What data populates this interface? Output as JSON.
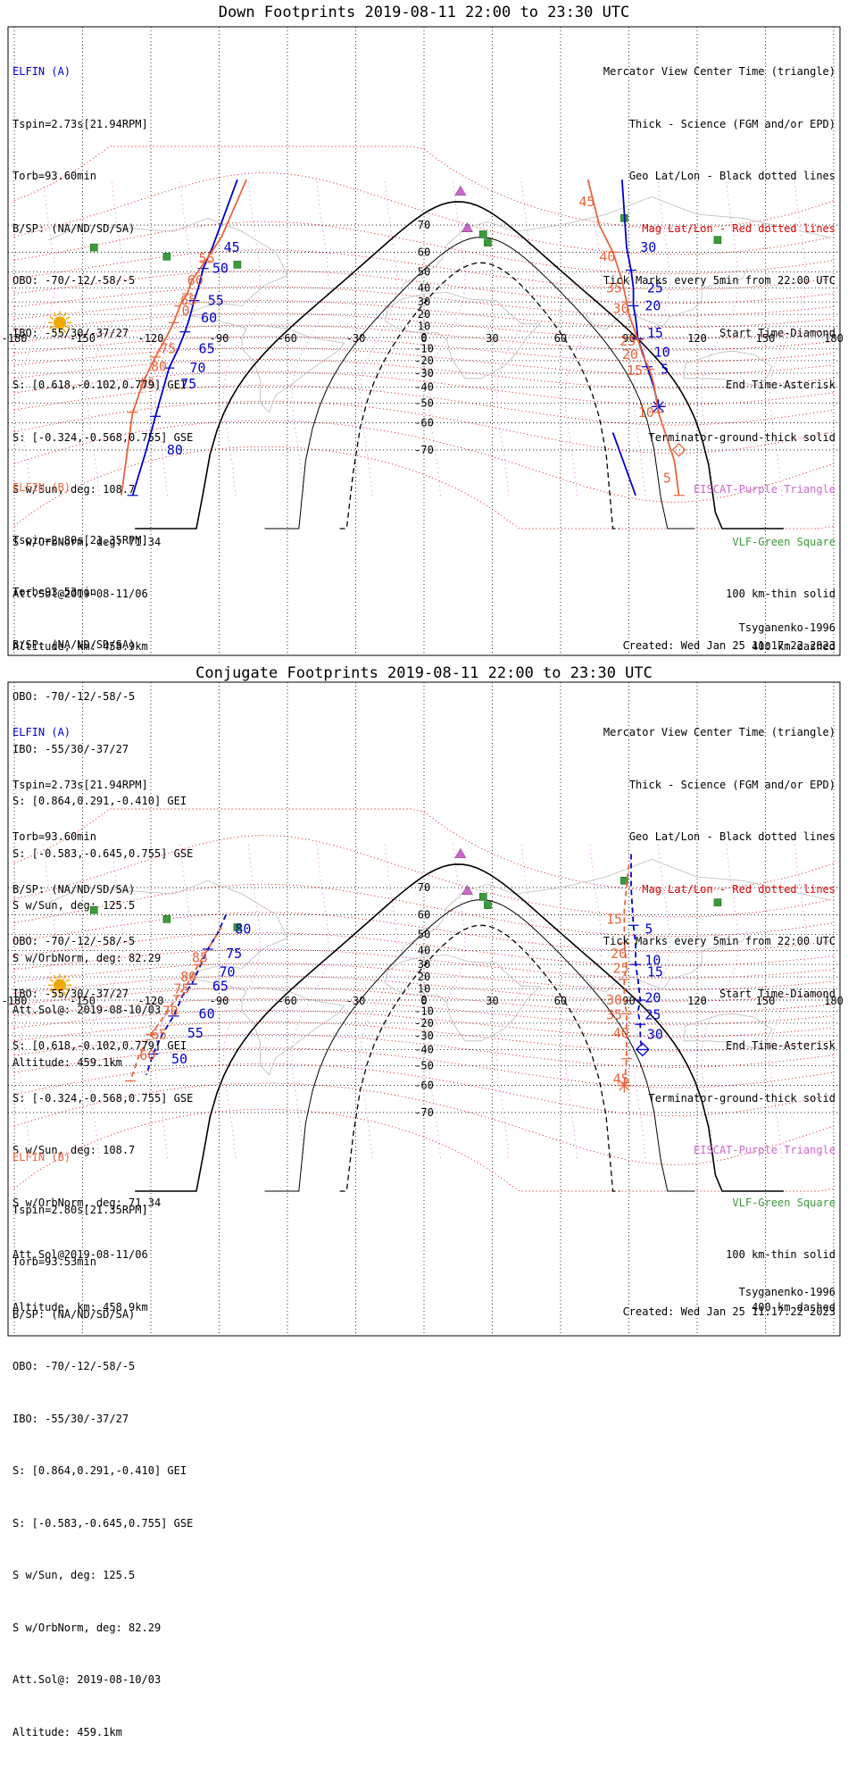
{
  "colors": {
    "elfin_a": "#0000cc",
    "elfin_b": "#e8643c",
    "mag_grid": "#dd0000",
    "geo_grid": "#000000",
    "eiscat": "#cc66cc",
    "vlf": "#3a9a3a",
    "coast": "#bbbbbb"
  },
  "icons": {
    "sun": "sun-icon",
    "eiscat": "triangle-marker",
    "vlf": "square-marker",
    "start": "diamond-marker",
    "end": "asterisk-marker"
  },
  "legend": [
    {
      "text": "Mercator View Center Time (triangle)",
      "color": "black"
    },
    {
      "text": "Thick - Science (FGM and/or EPD)",
      "color": "black"
    },
    {
      "text": "Geo Lat/Lon - Black dotted lines",
      "color": "black"
    },
    {
      "text": "Mag Lat/Lon - Red dotted lines",
      "color": "red"
    },
    {
      "text": "Tick Marks every 5min from 22:00 UTC",
      "color": "black"
    },
    {
      "text": "Start Time-Diamond",
      "color": "black"
    },
    {
      "text": "End Time-Asterisk",
      "color": "black"
    },
    {
      "text": "Terminator-ground-thick solid",
      "color": "black"
    },
    {
      "text": "EISCAT-Purple Triangle",
      "color": "purple"
    },
    {
      "text": "VLF-Green Square",
      "color": "green"
    },
    {
      "text": "100 km-thin solid",
      "color": "black"
    },
    {
      "text": "400 km-dashed",
      "color": "black"
    }
  ],
  "elfin_a_info": [
    "ELFIN (A)",
    "Tspin=2.73s[21.94RPM]",
    "Torb=93.60min",
    "B/SP: (NA/ND/SD/SA)",
    "OBO: -70/-12/-58/-5",
    "IBO: -55/30/-37/27",
    "S: [0.618,-0.102,0.779] GEI",
    "S: [-0.324,-0.568,0.755] GSE",
    "S w/Sun, deg: 108.7",
    "S w/OrbNorm, deg: 71.34",
    "Att.Sol@2019-08-11/06",
    "Altitude, km: 458.9km"
  ],
  "elfin_b_info": [
    "ELFIN (B)",
    "Tspin=2.80s[21.35RPM]",
    "Torb=93.53min",
    "B/SP: (NA/ND/SD/SA)",
    "OBO: -70/-12/-58/-5",
    "IBO: -55/30/-37/27",
    "S: [0.864,0.291,-0.410] GEI",
    "S: [-0.583,-0.645,0.755] GSE",
    "S w/Sun, deg: 125.5",
    "S w/OrbNorm, deg: 82.29",
    "Att.Sol@: 2019-08-10/03",
    "Altitude: 459.1km"
  ],
  "panels": [
    {
      "title": "Down Footprints 2019-08-11 22:00 to 23:30 UTC",
      "model": "Tsyganenko-1996",
      "created": "Created: Wed Jan 25 11:17:22 2023"
    },
    {
      "title": "Conjugate Footprints 2019-08-11 22:00 to 23:30 UTC",
      "model": "Tsyganenko-1996",
      "created": "Created: Wed Jan 25 11:17:22 2023"
    }
  ],
  "chart_data": [
    {
      "type": "map",
      "title": "Down Footprints 2019-08-11 22:00 to 23:30 UTC",
      "projection": "mercator",
      "xlim": [
        -180,
        180
      ],
      "ylim": [
        -80,
        80
      ],
      "lon_ticks": [
        -180,
        -150,
        -120,
        -90,
        -60,
        -30,
        0,
        30,
        60,
        90,
        120,
        150,
        180
      ],
      "lat_ticks": [
        -70,
        -60,
        -50,
        -40,
        -30,
        -20,
        -10,
        0,
        10,
        20,
        30,
        40,
        50,
        60,
        70
      ],
      "eiscat": [
        {
          "lon": 16,
          "lat": 78
        },
        {
          "lon": 19,
          "lat": 69
        }
      ],
      "vlf": [
        {
          "lon": -145,
          "lat": 62
        },
        {
          "lon": -113,
          "lat": 58
        },
        {
          "lon": -82,
          "lat": 54
        },
        {
          "lon": 26,
          "lat": 67
        },
        {
          "lon": 28,
          "lat": 64
        },
        {
          "lon": 88,
          "lat": 72
        },
        {
          "lon": 129,
          "lat": 65
        }
      ],
      "sun": {
        "lon": -160,
        "lat": 13
      },
      "series": [
        {
          "name": "ELFIN (A)",
          "color": "#0000cc",
          "marks": "end",
          "tracks": [
            {
              "points": [
                [
                  -82,
                  80
                ],
                [
                  -93,
                  62
                ],
                [
                  -97,
                  52
                ],
                [
                  -99,
                  41
                ],
                [
                  -101,
                  31
                ],
                [
                  -103,
                  17
                ],
                [
                  -105,
                  5
                ],
                [
                  -108,
                  -10
                ],
                [
                  -112,
                  -26
                ],
                [
                  -114,
                  -38
                ],
                [
                  -118,
                  -57
                ],
                [
                  -122,
                  -70
                ],
                [
                  -128,
                  -80
                ]
              ]
            },
            {
              "points": [
                [
                  87,
                  80
                ],
                [
                  89,
                  62
                ],
                [
                  91,
                  51
                ],
                [
                  92,
                  40
                ],
                [
                  92,
                  27
                ],
                [
                  93,
                  17
                ],
                [
                  94,
                  -1
                ],
                [
                  96,
                  -13
                ],
                [
                  98,
                  -25
                ],
                [
                  101,
                  -40
                ],
                [
                  103,
                  -52
                ]
              ]
            },
            {
              "points": [
                [
                  83,
                  -64
                ],
                [
                  93,
                  -80
                ]
              ]
            }
          ],
          "labels": [
            {
              "text": "45",
              "lon": -88,
              "lat": 62
            },
            {
              "text": "50",
              "lon": -93,
              "lat": 52
            },
            {
              "text": "55",
              "lon": -95,
              "lat": 31
            },
            {
              "text": "60",
              "lon": -98,
              "lat": 17
            },
            {
              "text": "65",
              "lon": -99,
              "lat": -10
            },
            {
              "text": "70",
              "lon": -103,
              "lat": -26
            },
            {
              "text": "75",
              "lon": -107,
              "lat": -38
            },
            {
              "text": "80",
              "lon": -113,
              "lat": -70
            },
            {
              "text": "30",
              "lon": 95,
              "lat": 62
            },
            {
              "text": "25",
              "lon": 98,
              "lat": 40
            },
            {
              "text": "20",
              "lon": 97,
              "lat": 27
            },
            {
              "text": "15",
              "lon": 98,
              "lat": 4
            },
            {
              "text": "10",
              "lon": 101,
              "lat": -13
            },
            {
              "text": "5",
              "lon": 104,
              "lat": -27
            }
          ]
        },
        {
          "name": "ELFIN (B)",
          "color": "#e8643c",
          "marks": "start",
          "tracks": [
            {
              "points": [
                [
                  -78,
                  80
                ],
                [
                  -89,
                  66
                ],
                [
                  -96,
                  56
                ],
                [
                  -102,
                  45
                ],
                [
                  -104,
                  36
                ],
                [
                  -107,
                  28
                ],
                [
                  -110,
                  13
                ],
                [
                  -113,
                  1
                ],
                [
                  -118,
                  -17
                ],
                [
                  -123,
                  -35
                ],
                [
                  -128,
                  -55
                ],
                [
                  -133,
                  -80
                ]
              ]
            },
            {
              "points": [
                [
                  72,
                  80
                ],
                [
                  77,
                  70
                ],
                [
                  83,
                  60
                ],
                [
                  87,
                  45
                ],
                [
                  89,
                  30
                ],
                [
                  90,
                  20
                ],
                [
                  94,
                  -2
                ],
                [
                  96,
                  -15
                ],
                [
                  99,
                  -27
                ],
                [
                  101,
                  -38
                ],
                [
                  103,
                  -55
                ],
                [
                  110,
                  -73
                ],
                [
                  112,
                  -80
                ]
              ]
            }
          ],
          "labels": [
            {
              "text": "55",
              "lon": -99,
              "lat": 57
            },
            {
              "text": "60",
              "lon": -104,
              "lat": 45
            },
            {
              "text": "65",
              "lon": -107,
              "lat": 31
            },
            {
              "text": "70",
              "lon": -110,
              "lat": 23
            },
            {
              "text": "75",
              "lon": -116,
              "lat": -10
            },
            {
              "text": "80",
              "lon": -120,
              "lat": -25
            },
            {
              "text": "85",
              "lon": -125,
              "lat": -38
            },
            {
              "text": "45",
              "lon": 68,
              "lat": 76
            },
            {
              "text": "40",
              "lon": 77,
              "lat": 58
            },
            {
              "text": "35",
              "lon": 80,
              "lat": 40
            },
            {
              "text": "30",
              "lon": 83,
              "lat": 25
            },
            {
              "text": "25",
              "lon": 86,
              "lat": -3
            },
            {
              "text": "20",
              "lon": 87,
              "lat": -15
            },
            {
              "text": "15",
              "lon": 89,
              "lat": -28
            },
            {
              "text": "10",
              "lon": 94,
              "lat": -55
            },
            {
              "text": "5",
              "lon": 105,
              "lat": -77
            }
          ]
        }
      ]
    },
    {
      "type": "map",
      "title": "Conjugate Footprints 2019-08-11 22:00 to 23:30 UTC",
      "projection": "mercator",
      "xlim": [
        -180,
        180
      ],
      "ylim": [
        -80,
        80
      ],
      "lon_ticks": [
        -180,
        -150,
        -120,
        -90,
        -60,
        -30,
        0,
        30,
        60,
        90,
        120,
        150,
        180
      ],
      "lat_ticks": [
        -70,
        -60,
        -50,
        -40,
        -30,
        -20,
        -10,
        0,
        10,
        20,
        30,
        40,
        50,
        60,
        70
      ],
      "eiscat": [
        {
          "lon": 16,
          "lat": 78
        },
        {
          "lon": 19,
          "lat": 69
        }
      ],
      "vlf": [
        {
          "lon": -145,
          "lat": 62
        },
        {
          "lon": -113,
          "lat": 58
        },
        {
          "lon": -82,
          "lat": 54
        },
        {
          "lon": 26,
          "lat": 67
        },
        {
          "lon": 28,
          "lat": 64
        },
        {
          "lon": 88,
          "lat": 72
        },
        {
          "lon": 129,
          "lat": 65
        }
      ],
      "sun": {
        "lon": -160,
        "lat": 13
      },
      "series": [
        {
          "name": "ELFIN (A)",
          "color": "#0000cc",
          "marks": "start",
          "dashed": true,
          "tracks": [
            {
              "points": [
                [
                  -87,
                  60
                ],
                [
                  -91,
                  50
                ],
                [
                  -95,
                  41
                ],
                [
                  -98,
                  30
                ],
                [
                  -102,
                  14
                ],
                [
                  -106,
                  4
                ],
                [
                  -110,
                  -14
                ],
                [
                  -115,
                  -29
                ],
                [
                  -119,
                  -43
                ],
                [
                  -122,
                  -55
                ]
              ]
            },
            {
              "points": [
                [
                  91,
                  78
                ],
                [
                  91,
                  70
                ],
                [
                  92,
                  55
                ],
                [
                  93,
                  44
                ],
                [
                  93,
                  30
                ],
                [
                  94,
                  18
                ],
                [
                  95,
                  0
                ],
                [
                  94,
                  -10
                ],
                [
                  95,
                  -21
                ],
                [
                  95,
                  -33
                ],
                [
                  96,
                  -40
                ]
              ]
            }
          ],
          "labels": [
            {
              "text": "80",
              "lon": -83,
              "lat": 53
            },
            {
              "text": "75",
              "lon": -87,
              "lat": 38
            },
            {
              "text": "70",
              "lon": -90,
              "lat": 24
            },
            {
              "text": "65",
              "lon": -93,
              "lat": 12
            },
            {
              "text": "60",
              "lon": -99,
              "lat": -12
            },
            {
              "text": "55",
              "lon": -104,
              "lat": -28
            },
            {
              "text": "50",
              "lon": -111,
              "lat": -46
            },
            {
              "text": "5",
              "lon": 97,
              "lat": 53
            },
            {
              "text": "10",
              "lon": 97,
              "lat": 33
            },
            {
              "text": "15",
              "lon": 98,
              "lat": 24
            },
            {
              "text": "20",
              "lon": 97,
              "lat": 2
            },
            {
              "text": "25",
              "lon": 97,
              "lat": -13
            },
            {
              "text": "30",
              "lon": 98,
              "lat": -29
            }
          ]
        },
        {
          "name": "ELFIN (B)",
          "color": "#e8643c",
          "marks": "end",
          "dashed": true,
          "tracks": [
            {
              "points": [
                [
                  -89,
                  54
                ],
                [
                  -95,
                  41
                ],
                [
                  -99,
                  30
                ],
                [
                  -104,
                  14
                ],
                [
                  -108,
                  4
                ],
                [
                  -114,
                  -14
                ],
                [
                  -120,
                  -29
                ],
                [
                  -125,
                  -43
                ],
                [
                  -129,
                  -58
                ]
              ]
            },
            {
              "points": [
                [
                  90,
                  76
                ],
                [
                  88,
                  62
                ],
                [
                  88,
                  45
                ],
                [
                  89,
                  30
                ],
                [
                  88,
                  18
                ],
                [
                  88,
                  0
                ],
                [
                  89,
                  -12
                ],
                [
                  89,
                  -28
                ],
                [
                  89,
                  -46
                ],
                [
                  88,
                  -60
                ]
              ]
            }
          ],
          "labels": [
            {
              "text": "85",
              "lon": -102,
              "lat": 35
            },
            {
              "text": "80",
              "lon": -107,
              "lat": 20
            },
            {
              "text": "75",
              "lon": -110,
              "lat": 10
            },
            {
              "text": "70",
              "lon": -115,
              "lat": -10
            },
            {
              "text": "65",
              "lon": -120,
              "lat": -29
            },
            {
              "text": "60",
              "lon": -125,
              "lat": -44
            },
            {
              "text": "15",
              "lon": 80,
              "lat": 58
            },
            {
              "text": "20",
              "lon": 82,
              "lat": 38
            },
            {
              "text": "25",
              "lon": 83,
              "lat": 27
            },
            {
              "text": "30",
              "lon": 80,
              "lat": 0
            },
            {
              "text": "35",
              "lon": 80,
              "lat": -13
            },
            {
              "text": "40",
              "lon": 83,
              "lat": -28
            },
            {
              "text": "45",
              "lon": 83,
              "lat": -57
            }
          ]
        }
      ]
    }
  ]
}
